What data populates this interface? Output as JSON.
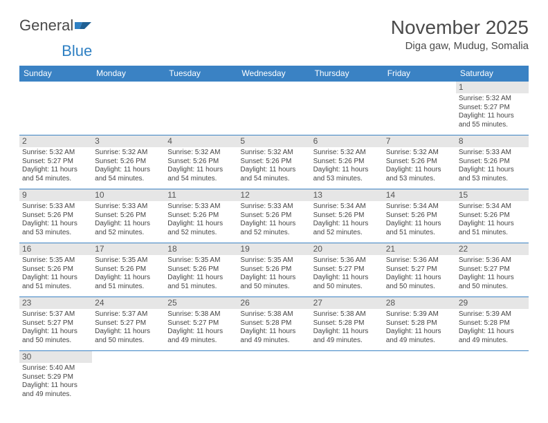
{
  "logo": {
    "word1": "General",
    "word2": "Blue"
  },
  "header": {
    "month": "November 2025",
    "location": "Diga gaw, Mudug, Somalia"
  },
  "theme": {
    "header_bg": "#3a82c4",
    "header_fg": "#ffffff",
    "daynum_bg": "#e6e6e6",
    "grid_line": "#3a82c4",
    "text": "#444444"
  },
  "weekdays": [
    "Sunday",
    "Monday",
    "Tuesday",
    "Wednesday",
    "Thursday",
    "Friday",
    "Saturday"
  ],
  "leading_blanks": 6,
  "days": [
    {
      "n": 1,
      "sunrise": "5:32 AM",
      "sunset": "5:27 PM",
      "daylight": "11 hours and 55 minutes."
    },
    {
      "n": 2,
      "sunrise": "5:32 AM",
      "sunset": "5:27 PM",
      "daylight": "11 hours and 54 minutes."
    },
    {
      "n": 3,
      "sunrise": "5:32 AM",
      "sunset": "5:26 PM",
      "daylight": "11 hours and 54 minutes."
    },
    {
      "n": 4,
      "sunrise": "5:32 AM",
      "sunset": "5:26 PM",
      "daylight": "11 hours and 54 minutes."
    },
    {
      "n": 5,
      "sunrise": "5:32 AM",
      "sunset": "5:26 PM",
      "daylight": "11 hours and 54 minutes."
    },
    {
      "n": 6,
      "sunrise": "5:32 AM",
      "sunset": "5:26 PM",
      "daylight": "11 hours and 53 minutes."
    },
    {
      "n": 7,
      "sunrise": "5:32 AM",
      "sunset": "5:26 PM",
      "daylight": "11 hours and 53 minutes."
    },
    {
      "n": 8,
      "sunrise": "5:33 AM",
      "sunset": "5:26 PM",
      "daylight": "11 hours and 53 minutes."
    },
    {
      "n": 9,
      "sunrise": "5:33 AM",
      "sunset": "5:26 PM",
      "daylight": "11 hours and 53 minutes."
    },
    {
      "n": 10,
      "sunrise": "5:33 AM",
      "sunset": "5:26 PM",
      "daylight": "11 hours and 52 minutes."
    },
    {
      "n": 11,
      "sunrise": "5:33 AM",
      "sunset": "5:26 PM",
      "daylight": "11 hours and 52 minutes."
    },
    {
      "n": 12,
      "sunrise": "5:33 AM",
      "sunset": "5:26 PM",
      "daylight": "11 hours and 52 minutes."
    },
    {
      "n": 13,
      "sunrise": "5:34 AM",
      "sunset": "5:26 PM",
      "daylight": "11 hours and 52 minutes."
    },
    {
      "n": 14,
      "sunrise": "5:34 AM",
      "sunset": "5:26 PM",
      "daylight": "11 hours and 51 minutes."
    },
    {
      "n": 15,
      "sunrise": "5:34 AM",
      "sunset": "5:26 PM",
      "daylight": "11 hours and 51 minutes."
    },
    {
      "n": 16,
      "sunrise": "5:35 AM",
      "sunset": "5:26 PM",
      "daylight": "11 hours and 51 minutes."
    },
    {
      "n": 17,
      "sunrise": "5:35 AM",
      "sunset": "5:26 PM",
      "daylight": "11 hours and 51 minutes."
    },
    {
      "n": 18,
      "sunrise": "5:35 AM",
      "sunset": "5:26 PM",
      "daylight": "11 hours and 51 minutes."
    },
    {
      "n": 19,
      "sunrise": "5:35 AM",
      "sunset": "5:26 PM",
      "daylight": "11 hours and 50 minutes."
    },
    {
      "n": 20,
      "sunrise": "5:36 AM",
      "sunset": "5:27 PM",
      "daylight": "11 hours and 50 minutes."
    },
    {
      "n": 21,
      "sunrise": "5:36 AM",
      "sunset": "5:27 PM",
      "daylight": "11 hours and 50 minutes."
    },
    {
      "n": 22,
      "sunrise": "5:36 AM",
      "sunset": "5:27 PM",
      "daylight": "11 hours and 50 minutes."
    },
    {
      "n": 23,
      "sunrise": "5:37 AM",
      "sunset": "5:27 PM",
      "daylight": "11 hours and 50 minutes."
    },
    {
      "n": 24,
      "sunrise": "5:37 AM",
      "sunset": "5:27 PM",
      "daylight": "11 hours and 50 minutes."
    },
    {
      "n": 25,
      "sunrise": "5:38 AM",
      "sunset": "5:27 PM",
      "daylight": "11 hours and 49 minutes."
    },
    {
      "n": 26,
      "sunrise": "5:38 AM",
      "sunset": "5:28 PM",
      "daylight": "11 hours and 49 minutes."
    },
    {
      "n": 27,
      "sunrise": "5:38 AM",
      "sunset": "5:28 PM",
      "daylight": "11 hours and 49 minutes."
    },
    {
      "n": 28,
      "sunrise": "5:39 AM",
      "sunset": "5:28 PM",
      "daylight": "11 hours and 49 minutes."
    },
    {
      "n": 29,
      "sunrise": "5:39 AM",
      "sunset": "5:28 PM",
      "daylight": "11 hours and 49 minutes."
    },
    {
      "n": 30,
      "sunrise": "5:40 AM",
      "sunset": "5:29 PM",
      "daylight": "11 hours and 49 minutes."
    }
  ],
  "labels": {
    "sunrise": "Sunrise: ",
    "sunset": "Sunset: ",
    "daylight": "Daylight: "
  }
}
